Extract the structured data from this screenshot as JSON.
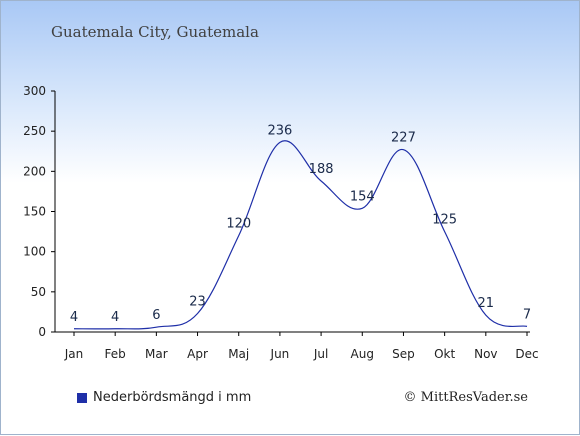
{
  "chart_title": "Guatemala City, Guatemala",
  "legend_label": "Nederbördsmängd i mm",
  "credit": "© MittResVader.se",
  "colors": {
    "line": "#1f2fa8",
    "swatch": "#1f2fa8"
  },
  "chart_data": {
    "type": "line",
    "title": "Guatemala City, Guatemala",
    "categories": [
      "Jan",
      "Feb",
      "Mar",
      "Apr",
      "Maj",
      "Jun",
      "Jul",
      "Aug",
      "Sep",
      "Okt",
      "Nov",
      "Dec"
    ],
    "series": [
      {
        "name": "Nederbördsmängd i mm",
        "values": [
          4,
          4,
          6,
          23,
          120,
          236,
          188,
          154,
          227,
          125,
          21,
          7
        ]
      }
    ],
    "ylim": [
      0,
      300
    ],
    "yticks": [
      0,
      50,
      100,
      150,
      200,
      250,
      300
    ],
    "grid": false,
    "legend": "bottom-left"
  }
}
